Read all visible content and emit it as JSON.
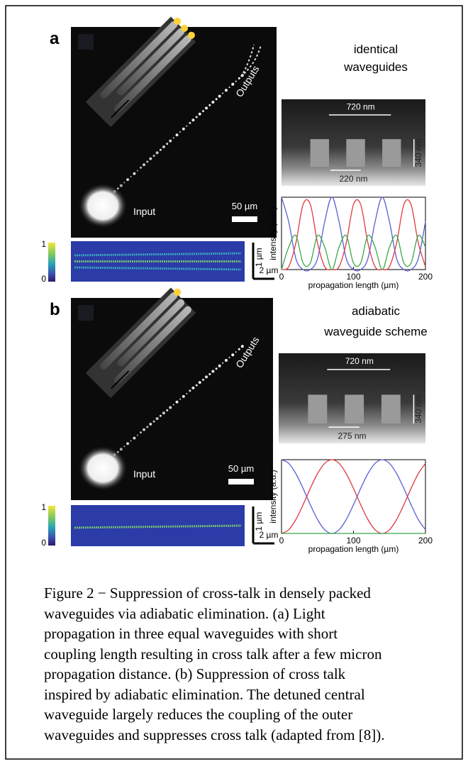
{
  "panels": [
    {
      "label": "a",
      "title": [
        "identical",
        "waveguides"
      ],
      "micrograph": {
        "outputs": "Outputs",
        "input": "Input",
        "scale": "50 µm"
      },
      "sem": {
        "width": "720 nm",
        "height": "340 nm",
        "gap": "220 nm"
      },
      "colorbar": {
        "max": "1",
        "min": "0"
      },
      "strip_scale": {
        "vertical": "1 µm",
        "horizontal": "2 µm"
      },
      "plot": {
        "type": "line",
        "y_label": "intensity (a.u.)",
        "x_label": "propagation length (µm)",
        "x": [
          0,
          10,
          20,
          30,
          40,
          50,
          60,
          70,
          80,
          90,
          100,
          110,
          120,
          130,
          140,
          150,
          160,
          170,
          180,
          190,
          200
        ],
        "series": [
          {
            "color": "#5a5fd6",
            "values": [
              1,
              0.66,
              0.15,
              0,
              0,
              0.15,
              0.66,
              1,
              0.66,
              0.15,
              0,
              0,
              0.15,
              0.66,
              1,
              0.66,
              0.15,
              0,
              0,
              0.15,
              0.66
            ]
          },
          {
            "color": "#e0393e",
            "values": [
              0,
              0.04,
              0.37,
              0.9,
              0.9,
              0.37,
              0.04,
              0,
              0.04,
              0.37,
              0.9,
              0.9,
              0.37,
              0.04,
              0,
              0.04,
              0.37,
              0.9,
              0.9,
              0.37,
              0.04
            ]
          },
          {
            "color": "#3aa84a",
            "values": [
              0,
              0.31,
              0.47,
              0.09,
              0.09,
              0.47,
              0.31,
              0,
              0.31,
              0.47,
              0.09,
              0.09,
              0.47,
              0.31,
              0,
              0.31,
              0.47,
              0.09,
              0.09,
              0.47,
              0.31
            ]
          }
        ],
        "xlim": [
          0,
          200
        ],
        "ylim": [
          0,
          1
        ],
        "xticks": [
          0,
          100,
          200
        ]
      }
    },
    {
      "label": "b",
      "title": [
        "adiabatic",
        "waveguide scheme"
      ],
      "micrograph": {
        "outputs": "Outputs",
        "input": "Input",
        "scale": "50 µm"
      },
      "sem": {
        "width": "720 nm",
        "height": "340 nm",
        "gap": "275 nm"
      },
      "colorbar": {
        "max": "1",
        "min": "0"
      },
      "strip_scale": {
        "vertical": "1 µm",
        "horizontal": "2 µm"
      },
      "plot": {
        "type": "line",
        "y_label": "intensity (a.u.)",
        "x_label": "propagation length (µm)",
        "x": [
          0,
          10,
          20,
          30,
          40,
          50,
          60,
          70,
          80,
          90,
          100,
          110,
          120,
          130,
          140,
          150,
          160,
          170,
          180,
          190,
          200
        ],
        "series": [
          {
            "color": "#5a5fd6",
            "values": [
              1,
              0.95,
              0.81,
              0.61,
              0.39,
              0.19,
              0.05,
              0,
              0.05,
              0.19,
              0.39,
              0.61,
              0.81,
              0.95,
              1,
              0.95,
              0.81,
              0.61,
              0.39,
              0.19,
              0.05
            ]
          },
          {
            "color": "#e0393e",
            "values": [
              0,
              0.05,
              0.19,
              0.39,
              0.61,
              0.81,
              0.95,
              1,
              0.95,
              0.81,
              0.61,
              0.39,
              0.19,
              0.05,
              0,
              0.05,
              0.19,
              0.39,
              0.61,
              0.81,
              0.95
            ]
          },
          {
            "color": "#3aa84a",
            "values": [
              0,
              0,
              0,
              0,
              0,
              0,
              0,
              0,
              0,
              0,
              0,
              0,
              0,
              0,
              0,
              0,
              0,
              0,
              0,
              0,
              0
            ]
          }
        ],
        "xlim": [
          0,
          200
        ],
        "ylim": [
          0,
          1
        ],
        "xticks": [
          0,
          100,
          200
        ]
      }
    }
  ],
  "caption": [
    "Figure 2 − Suppression of cross-talk in densely packed",
    "waveguides via adiabatic elimination. (a) Light",
    "propagation in three equal waveguides with short",
    "coupling length resulting in cross talk after a few micron",
    "propagation distance. (b) Suppression of cross talk",
    "inspired by adiabatic elimination. The detuned central",
    "waveguide largely reduces the coupling of the outer",
    "waveguides and suppresses cross talk (adapted from [8])."
  ]
}
